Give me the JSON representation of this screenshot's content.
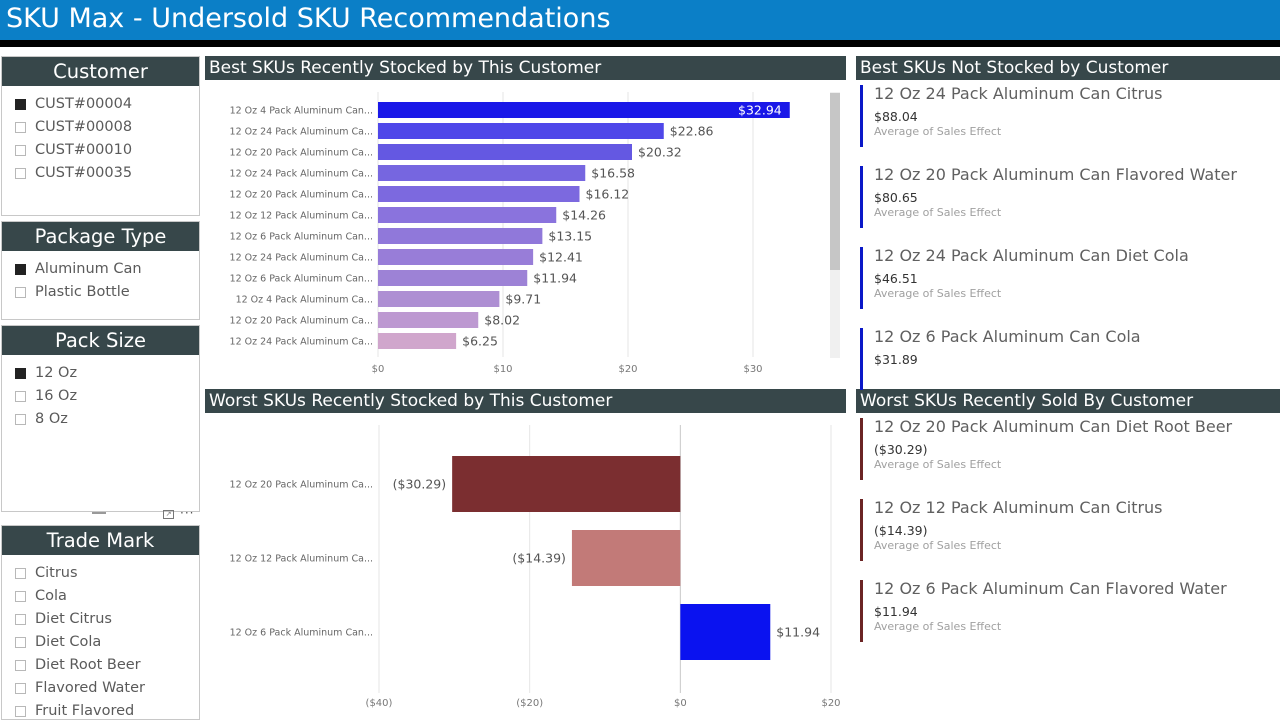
{
  "header": {
    "title": "SKU Max - Undersold SKU Recommendations"
  },
  "slicers": {
    "customer": {
      "title": "Customer",
      "items": [
        {
          "label": "CUST#00004",
          "checked": true
        },
        {
          "label": "CUST#00008",
          "checked": false
        },
        {
          "label": "CUST#00010",
          "checked": false
        },
        {
          "label": "CUST#00035",
          "checked": false
        }
      ]
    },
    "package_type": {
      "title": "Package Type",
      "items": [
        {
          "label": "Aluminum Can",
          "checked": true
        },
        {
          "label": "Plastic Bottle",
          "checked": false
        }
      ]
    },
    "pack_size": {
      "title": "Pack Size",
      "items": [
        {
          "label": "12 Oz",
          "checked": true
        },
        {
          "label": "16 Oz",
          "checked": false
        },
        {
          "label": "8 Oz",
          "checked": false
        }
      ]
    },
    "trade_mark": {
      "title": "Trade Mark",
      "items": [
        {
          "label": "Citrus",
          "checked": false
        },
        {
          "label": "Cola",
          "checked": false
        },
        {
          "label": "Diet Citrus",
          "checked": false
        },
        {
          "label": "Diet Cola",
          "checked": false
        },
        {
          "label": "Diet Root Beer",
          "checked": false
        },
        {
          "label": "Flavored Water",
          "checked": false
        },
        {
          "label": "Fruit Flavored",
          "checked": false
        }
      ]
    }
  },
  "icons": {
    "focus": "focus-mode-icon",
    "more": "more-options-icon",
    "handle": "resize-handle-icon"
  },
  "sections": {
    "best_stocked": "Best SKUs Recently Stocked by This Customer",
    "worst_stocked": "Worst SKUs Recently Stocked by This Customer",
    "best_not_stocked": "Best SKUs Not Stocked by Customer",
    "worst_sold": "Worst SKUs Recently Sold By Customer"
  },
  "chart_data": [
    {
      "type": "bar",
      "orientation": "horizontal",
      "title": "Best SKUs Recently Stocked by This Customer",
      "categories": [
        "12 Oz 4 Pack Aluminum Can...",
        "12 Oz 24 Pack Aluminum Ca...",
        "12 Oz 20 Pack Aluminum Ca...",
        "12 Oz 24 Pack Aluminum Ca...",
        "12 Oz 20 Pack Aluminum Ca...",
        "12 Oz 12 Pack Aluminum Ca...",
        "12 Oz 6 Pack Aluminum Can...",
        "12 Oz 24 Pack Aluminum Ca...",
        "12 Oz 6 Pack Aluminum Can...",
        "12 Oz 4 Pack Aluminum Ca...",
        "12 Oz 20 Pack Aluminum Ca...",
        "12 Oz 24 Pack Aluminum Ca..."
      ],
      "values": [
        32.94,
        22.86,
        20.32,
        16.58,
        16.12,
        14.26,
        13.15,
        12.41,
        11.94,
        9.71,
        8.02,
        6.25
      ],
      "data_labels": [
        "$32.94",
        "$22.86",
        "$20.32",
        "$16.58",
        "$16.12",
        "$14.26",
        "$13.15",
        "$12.41",
        "$11.94",
        "$9.71",
        "$8.02",
        "$6.25"
      ],
      "colors": [
        "#1a18e8",
        "#4f47e9",
        "#6458e2",
        "#7666e0",
        "#7c69df",
        "#8a73dd",
        "#9078da",
        "#987dd8",
        "#9d82d6",
        "#ae8fd3",
        "#bd99d1",
        "#d0a6cc"
      ],
      "xlim": [
        0,
        34
      ],
      "xticks": [
        0,
        10,
        20,
        30
      ],
      "xtick_labels": [
        "$0",
        "$10",
        "$20",
        "$30"
      ],
      "grid": true
    },
    {
      "type": "bar",
      "orientation": "horizontal",
      "title": "Worst SKUs Recently Stocked by This Customer",
      "categories": [
        "12 Oz 20 Pack Aluminum Ca...",
        "12 Oz 12 Pack Aluminum Ca...",
        "12 Oz 6 Pack Aluminum Can..."
      ],
      "values": [
        -30.29,
        -14.39,
        11.94
      ],
      "data_labels": [
        "($30.29)",
        "($14.39)",
        "$11.94"
      ],
      "colors": [
        "#7b2e30",
        "#c27a78",
        "#0a12f0"
      ],
      "xlim": [
        -40,
        20
      ],
      "xticks": [
        -40,
        -20,
        0,
        20
      ],
      "xtick_labels": [
        "($40)",
        "($20)",
        "$0",
        "$20"
      ],
      "grid": true
    }
  ],
  "cards_best_not_stocked": [
    {
      "title": "12 Oz 24 Pack Aluminum Can Citrus",
      "value": "$88.04",
      "sub": "Average of Sales Effect"
    },
    {
      "title": "12 Oz 20 Pack Aluminum Can Flavored Water",
      "value": "$80.65",
      "sub": "Average of Sales Effect"
    },
    {
      "title": "12 Oz 24 Pack Aluminum Can Diet Cola",
      "value": "$46.51",
      "sub": "Average of Sales Effect"
    },
    {
      "title": "12 Oz 6 Pack Aluminum Can Cola",
      "value": "$31.89",
      "sub": ""
    }
  ],
  "cards_worst_sold": [
    {
      "title": "12 Oz 20 Pack Aluminum Can Diet Root Beer",
      "value": "($30.29)",
      "sub": "Average of Sales Effect"
    },
    {
      "title": "12 Oz 12 Pack Aluminum Can Citrus",
      "value": "($14.39)",
      "sub": "Average of Sales Effect"
    },
    {
      "title": "12 Oz 6 Pack Aluminum Can Flavored Water",
      "value": "$11.94",
      "sub": "Average of Sales Effect"
    }
  ]
}
